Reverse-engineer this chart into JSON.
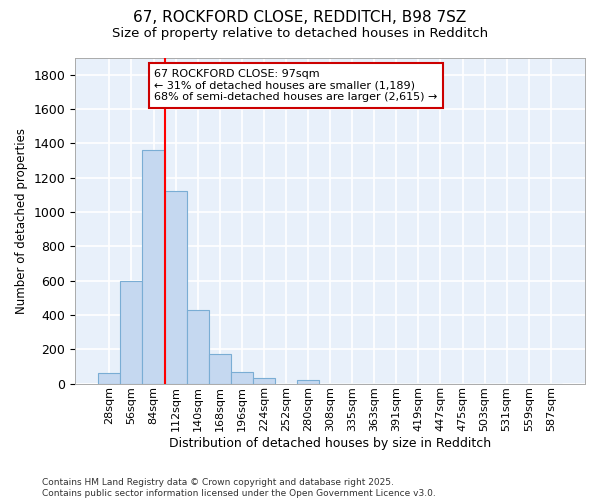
{
  "title_line1": "67, ROCKFORD CLOSE, REDDITCH, B98 7SZ",
  "title_line2": "Size of property relative to detached houses in Redditch",
  "xlabel": "Distribution of detached houses by size in Redditch",
  "ylabel": "Number of detached properties",
  "bar_labels": [
    "28sqm",
    "56sqm",
    "84sqm",
    "112sqm",
    "140sqm",
    "168sqm",
    "196sqm",
    "224sqm",
    "252sqm",
    "280sqm",
    "308sqm",
    "335sqm",
    "363sqm",
    "391sqm",
    "419sqm",
    "447sqm",
    "475sqm",
    "503sqm",
    "531sqm",
    "559sqm",
    "587sqm"
  ],
  "bar_values": [
    60,
    600,
    1360,
    1120,
    430,
    170,
    70,
    35,
    0,
    20,
    0,
    0,
    0,
    0,
    0,
    0,
    0,
    0,
    0,
    0,
    0
  ],
  "bar_color": "#c5d8f0",
  "bar_edge_color": "#7aadd4",
  "vline_color": "red",
  "vline_x": 2.5,
  "ylim": [
    0,
    1900
  ],
  "yticks": [
    0,
    200,
    400,
    600,
    800,
    1000,
    1200,
    1400,
    1600,
    1800
  ],
  "annotation_text": "67 ROCKFORD CLOSE: 97sqm\n← 31% of detached houses are smaller (1,189)\n68% of semi-detached houses are larger (2,615) →",
  "box_facecolor": "#ffffff",
  "box_edgecolor": "#cc0000",
  "footnote": "Contains HM Land Registry data © Crown copyright and database right 2025.\nContains public sector information licensed under the Open Government Licence v3.0.",
  "bg_color": "#ffffff",
  "plot_bg_color": "#e8f0fa",
  "grid_color": "#ffffff",
  "title_fontsize": 11,
  "subtitle_fontsize": 9.5
}
